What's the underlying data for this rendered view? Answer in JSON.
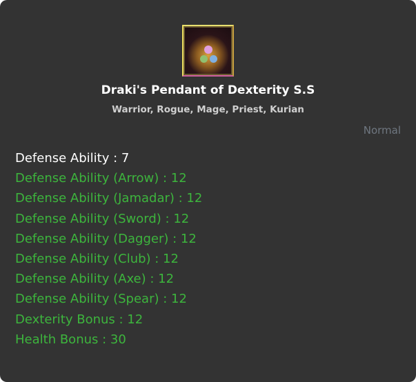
{
  "item": {
    "icon": "pendant-icon",
    "name": "Draki's Pendant of Dexterity S.S",
    "classes": "Warrior, Rogue, Mage, Priest, Kurian",
    "grade": "Normal"
  },
  "stats": [
    {
      "text": "Defense Ability : 7",
      "color": "#ffffff"
    },
    {
      "text": "Defense Ability (Arrow) : 12",
      "color": "#3db53d"
    },
    {
      "text": "Defense Ability (Jamadar) : 12",
      "color": "#3db53d"
    },
    {
      "text": "Defense Ability (Sword) : 12",
      "color": "#3db53d"
    },
    {
      "text": "Defense Ability (Dagger) : 12",
      "color": "#3db53d"
    },
    {
      "text": "Defense Ability (Club) : 12",
      "color": "#3db53d"
    },
    {
      "text": "Defense Ability (Axe) : 12",
      "color": "#3db53d"
    },
    {
      "text": "Defense Ability (Spear) : 12",
      "color": "#3db53d"
    },
    {
      "text": "Dexterity Bonus : 12",
      "color": "#3db53d"
    },
    {
      "text": "Health Bonus : 30",
      "color": "#3db53d"
    }
  ]
}
